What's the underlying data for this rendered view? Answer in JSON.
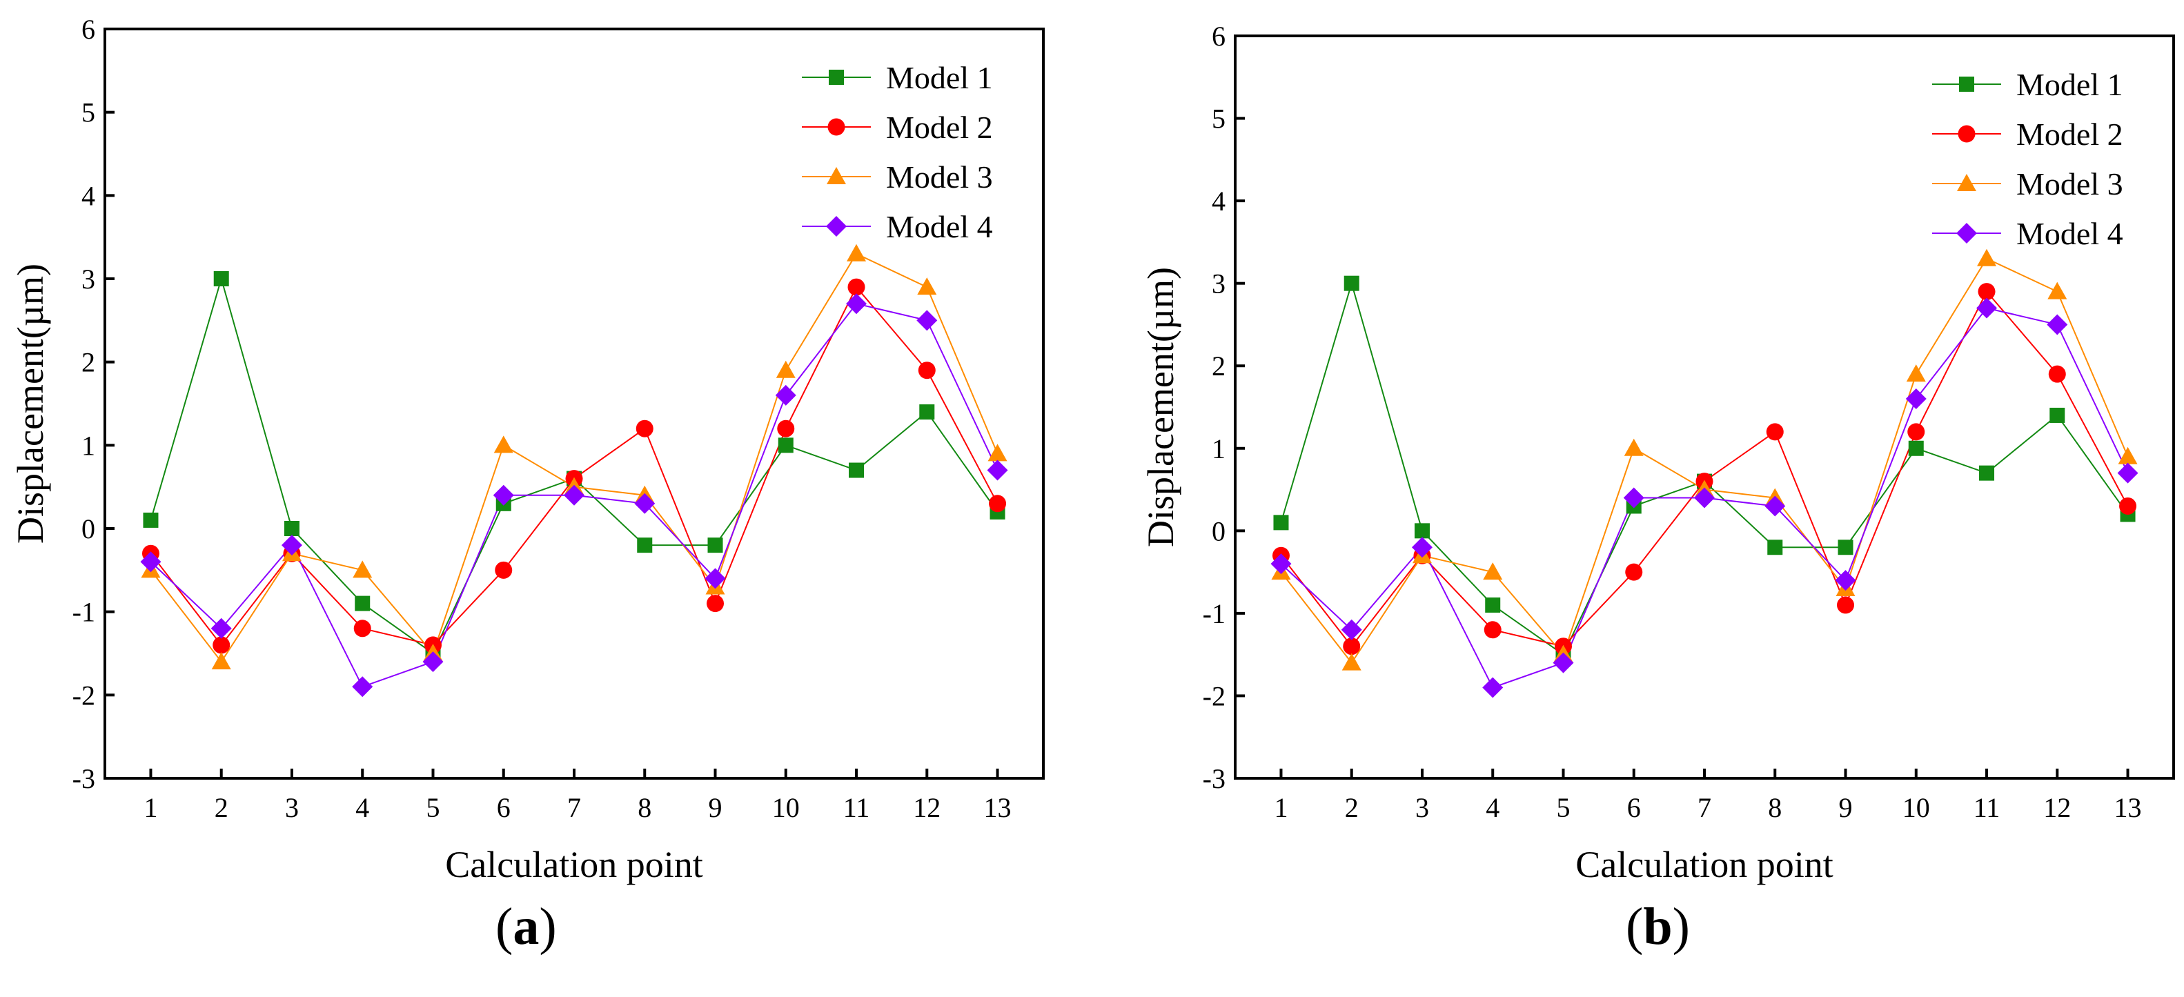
{
  "chart_data": [
    {
      "type": "line",
      "panel_label": "a",
      "xlabel": "Calculation point",
      "ylabel": "Displacement(µm)",
      "categories": [
        "1",
        "2",
        "3",
        "4",
        "5",
        "6",
        "7",
        "8",
        "9",
        "10",
        "11",
        "12",
        "13"
      ],
      "ylim": [
        -3,
        6
      ],
      "yticks": [
        "-3",
        "-2",
        "-1",
        "0",
        "1",
        "2",
        "3",
        "4",
        "5",
        "6"
      ],
      "legend_position": "top-right",
      "series": [
        {
          "name": "Model 1",
          "marker": "square",
          "color": "#138a13",
          "values": [
            0.1,
            3.0,
            0.0,
            -0.9,
            -1.5,
            0.3,
            0.6,
            -0.2,
            -0.2,
            1.0,
            0.7,
            1.4,
            0.2
          ]
        },
        {
          "name": "Model 2",
          "marker": "circle",
          "color": "#ff0000",
          "values": [
            -0.3,
            -1.4,
            -0.3,
            -1.2,
            -1.4,
            -0.5,
            0.6,
            1.2,
            -0.9,
            1.2,
            2.9,
            1.9,
            0.3
          ]
        },
        {
          "name": "Model 3",
          "marker": "triangle",
          "color": "#ff8c00",
          "values": [
            -0.5,
            -1.6,
            -0.3,
            -0.5,
            -1.5,
            1.0,
            0.5,
            0.4,
            -0.7,
            1.9,
            3.3,
            2.9,
            0.9
          ]
        },
        {
          "name": "Model 4",
          "marker": "diamond",
          "color": "#8b00ff",
          "values": [
            -0.4,
            -1.2,
            -0.2,
            -1.9,
            -1.6,
            0.4,
            0.4,
            0.3,
            -0.6,
            1.6,
            2.7,
            2.5,
            0.7
          ]
        }
      ]
    },
    {
      "type": "line",
      "panel_label": "b",
      "xlabel": "Calculation point",
      "ylabel": "Displacement(µm)",
      "categories": [
        "1",
        "2",
        "3",
        "4",
        "5",
        "6",
        "7",
        "8",
        "9",
        "10",
        "11",
        "12",
        "13"
      ],
      "ylim": [
        -3,
        6
      ],
      "yticks": [
        "-3",
        "-2",
        "-1",
        "0",
        "1",
        "2",
        "3",
        "4",
        "5",
        "6"
      ],
      "legend_position": "top-right",
      "series": [
        {
          "name": "Model 1",
          "marker": "square",
          "color": "#138a13",
          "values": [
            0.1,
            3.0,
            0.0,
            -0.9,
            -1.5,
            0.3,
            0.6,
            -0.2,
            -0.2,
            1.0,
            0.7,
            1.4,
            0.2
          ]
        },
        {
          "name": "Model 2",
          "marker": "circle",
          "color": "#ff0000",
          "values": [
            -0.3,
            -1.4,
            -0.3,
            -1.2,
            -1.4,
            -0.5,
            0.6,
            1.2,
            -0.9,
            1.2,
            2.9,
            1.9,
            0.3
          ]
        },
        {
          "name": "Model 3",
          "marker": "triangle",
          "color": "#ff8c00",
          "values": [
            -0.5,
            -1.6,
            -0.3,
            -0.5,
            -1.5,
            1.0,
            0.5,
            0.4,
            -0.7,
            1.9,
            3.3,
            2.9,
            0.9
          ]
        },
        {
          "name": "Model 4",
          "marker": "diamond",
          "color": "#8b00ff",
          "values": [
            -0.4,
            -1.2,
            -0.2,
            -1.9,
            -1.6,
            0.4,
            0.4,
            0.3,
            -0.6,
            1.6,
            2.7,
            2.5,
            0.7
          ]
        }
      ]
    }
  ]
}
